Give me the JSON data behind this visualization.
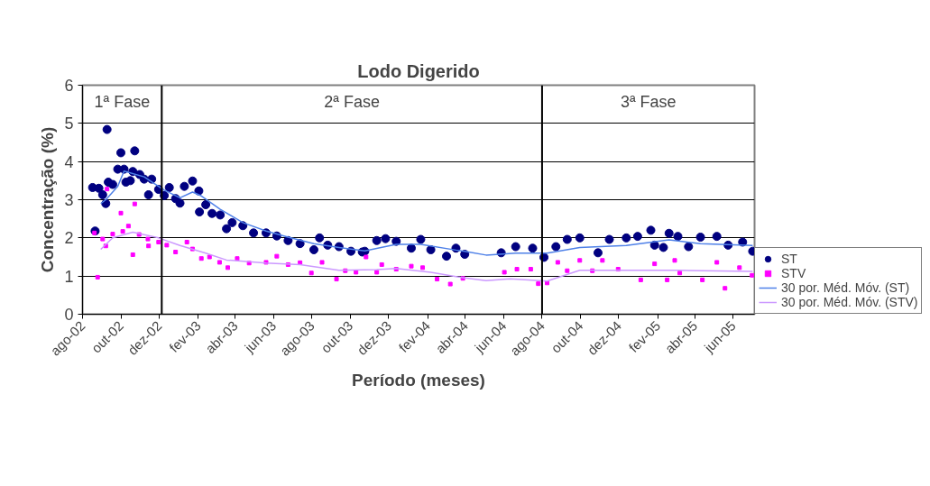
{
  "chart_data": {
    "type": "scatter",
    "title": "Lodo Digerido",
    "xlabel": "Período (meses)",
    "ylabel": "Concentração (%)",
    "xlim": [
      "2002-08-01",
      "2005-07-05"
    ],
    "ylim": [
      0,
      6
    ],
    "yticks": [
      0,
      1,
      2,
      3,
      4,
      5,
      6
    ],
    "xticks": [
      {
        "value": "2002-08-01",
        "label": "ago-02"
      },
      {
        "value": "2002-10-01",
        "label": "out-02"
      },
      {
        "value": "2002-12-01",
        "label": "dez-02"
      },
      {
        "value": "2003-02-01",
        "label": "fev-03"
      },
      {
        "value": "2003-04-01",
        "label": "abr-03"
      },
      {
        "value": "2003-06-01",
        "label": "jun-03"
      },
      {
        "value": "2003-08-01",
        "label": "ago-03"
      },
      {
        "value": "2003-10-01",
        "label": "out-03"
      },
      {
        "value": "2003-12-01",
        "label": "dez-03"
      },
      {
        "value": "2004-02-01",
        "label": "fev-04"
      },
      {
        "value": "2004-04-01",
        "label": "abr-04"
      },
      {
        "value": "2004-06-01",
        "label": "jun-04"
      },
      {
        "value": "2004-08-01",
        "label": "ago-04"
      },
      {
        "value": "2004-10-01",
        "label": "out-04"
      },
      {
        "value": "2004-12-01",
        "label": "dez-04"
      },
      {
        "value": "2005-02-01",
        "label": "fev-05"
      },
      {
        "value": "2005-04-01",
        "label": "abr-05"
      },
      {
        "value": "2005-06-01",
        "label": "jun-05"
      }
    ],
    "grid": "y",
    "legend": "bottom right",
    "ref_lines": [
      {
        "axis": "x",
        "value": "2002-12-05",
        "color": "#000000"
      },
      {
        "axis": "x",
        "value": "2004-08-01",
        "color": "#000000"
      }
    ],
    "annotations": [
      "1ª Fase",
      "2ª Fase",
      "3ª Fase"
    ],
    "series": [
      {
        "name": "ST",
        "marker": "circle",
        "color": "#000080",
        "x": [
          "2002-08-17",
          "2002-08-21",
          "2002-08-27",
          "2002-09-02",
          "2002-09-07",
          "2002-09-09",
          "2002-09-11",
          "2002-09-18",
          "2002-09-26",
          "2002-10-01",
          "2002-10-06",
          "2002-10-09",
          "2002-10-16",
          "2002-10-20",
          "2002-10-23",
          "2002-10-31",
          "2002-11-07",
          "2002-11-14",
          "2002-11-19",
          "2002-11-30",
          "2002-12-09",
          "2002-12-17",
          "2002-12-27",
          "2003-01-03",
          "2003-01-10",
          "2003-01-23",
          "2003-02-02",
          "2003-02-03",
          "2003-02-13",
          "2003-02-23",
          "2003-03-08",
          "2003-03-18",
          "2003-03-27",
          "2003-04-13",
          "2003-04-30",
          "2003-05-20",
          "2003-06-06",
          "2003-06-24",
          "2003-07-13",
          "2003-08-04",
          "2003-08-13",
          "2003-08-26",
          "2003-09-13",
          "2003-10-02",
          "2003-10-20",
          "2003-10-24",
          "2003-11-12",
          "2003-11-26",
          "2003-12-13",
          "2004-01-06",
          "2004-01-21",
          "2004-02-06",
          "2004-03-02",
          "2004-03-17",
          "2004-03-31",
          "2004-05-28",
          "2004-06-20",
          "2004-07-17",
          "2004-08-04",
          "2004-08-23",
          "2004-09-10",
          "2004-09-30",
          "2004-10-29",
          "2004-11-16",
          "2004-12-13",
          "2004-12-31",
          "2005-01-21",
          "2005-01-27",
          "2005-02-10",
          "2005-02-19",
          "2005-03-05",
          "2005-03-22",
          "2005-04-10",
          "2005-05-06",
          "2005-05-24",
          "2005-06-16",
          "2005-07-02"
        ],
        "values": [
          3.32,
          2.18,
          3.3,
          3.13,
          2.9,
          4.84,
          3.46,
          3.4,
          3.8,
          4.23,
          3.8,
          3.46,
          3.5,
          3.74,
          4.28,
          3.66,
          3.54,
          3.13,
          3.54,
          3.27,
          3.11,
          3.32,
          3.03,
          2.91,
          3.35,
          3.49,
          3.23,
          2.68,
          2.87,
          2.64,
          2.6,
          2.24,
          2.4,
          2.32,
          2.13,
          2.13,
          2.05,
          1.93,
          1.85,
          1.69,
          2.0,
          1.81,
          1.77,
          1.65,
          1.63,
          1.65,
          1.93,
          1.98,
          1.91,
          1.73,
          1.96,
          1.69,
          1.52,
          1.73,
          1.57,
          1.61,
          1.77,
          1.73,
          1.49,
          1.77,
          1.96,
          2.0,
          1.61,
          1.96,
          2.0,
          2.04,
          2.2,
          1.81,
          1.75,
          2.12,
          2.04,
          1.77,
          2.02,
          2.04,
          1.81,
          1.89,
          1.65
        ]
      },
      {
        "name": "STV",
        "marker": "square",
        "color": "#ff00ff",
        "x": [
          "2002-08-20",
          "2002-08-25",
          "2002-09-02",
          "2002-09-07",
          "2002-09-09",
          "2002-09-18",
          "2002-10-01",
          "2002-10-04",
          "2002-10-13",
          "2002-10-20",
          "2002-10-23",
          "2002-10-30",
          "2002-11-13",
          "2002-11-14",
          "2002-11-30",
          "2002-12-13",
          "2002-12-27",
          "2003-01-14",
          "2003-01-23",
          "2003-02-06",
          "2003-02-19",
          "2003-03-07",
          "2003-03-20",
          "2003-04-04",
          "2003-04-23",
          "2003-05-20",
          "2003-06-06",
          "2003-06-24",
          "2003-07-13",
          "2003-07-31",
          "2003-08-17",
          "2003-09-09",
          "2003-09-23",
          "2003-10-10",
          "2003-10-26",
          "2003-11-12",
          "2003-11-20",
          "2003-12-13",
          "2004-01-06",
          "2004-01-24",
          "2004-02-16",
          "2004-03-08",
          "2004-03-28",
          "2004-06-02",
          "2004-06-22",
          "2004-07-14",
          "2004-07-26",
          "2004-08-09",
          "2004-08-26",
          "2004-09-10",
          "2004-09-30",
          "2004-10-20",
          "2004-11-05",
          "2004-11-30",
          "2005-01-05",
          "2005-01-27",
          "2005-02-16",
          "2005-02-28",
          "2005-03-08",
          "2005-04-13",
          "2005-05-06",
          "2005-05-19",
          "2005-06-11",
          "2005-07-01"
        ],
        "values": [
          2.13,
          0.97,
          1.97,
          1.79,
          3.28,
          2.1,
          2.65,
          2.17,
          2.31,
          1.56,
          2.89,
          2.09,
          1.97,
          1.79,
          1.89,
          1.81,
          1.63,
          1.89,
          1.71,
          1.46,
          1.5,
          1.36,
          1.22,
          1.46,
          1.34,
          1.36,
          1.52,
          1.3,
          1.35,
          1.08,
          1.36,
          0.92,
          1.14,
          1.1,
          1.5,
          1.1,
          1.3,
          1.18,
          1.26,
          1.22,
          0.92,
          0.79,
          0.94,
          1.1,
          1.18,
          1.18,
          0.8,
          0.82,
          1.36,
          1.14,
          1.41,
          1.14,
          1.41,
          1.18,
          0.9,
          1.32,
          0.9,
          1.41,
          1.08,
          0.9,
          1.36,
          0.68,
          1.22,
          1.02
        ]
      },
      {
        "name": "30 por. Méd. Móv. (ST)",
        "type": "line",
        "line_style": "solid",
        "color": "#4f81e8",
        "x": [
          "2002-08-30",
          "2002-09-07",
          "2002-09-26",
          "2002-10-06",
          "2002-11-07",
          "2002-12-09",
          "2003-01-03",
          "2003-01-23",
          "2003-02-06",
          "2003-03-08",
          "2003-04-13",
          "2003-05-20",
          "2003-06-24",
          "2003-08-04",
          "2003-09-13",
          "2003-10-24",
          "2003-12-13",
          "2004-01-21",
          "2004-03-17",
          "2004-03-31",
          "2004-05-04",
          "2004-06-20",
          "2004-08-09",
          "2004-09-30",
          "2004-12-13",
          "2005-02-19",
          "2005-04-10",
          "2005-07-02"
        ],
        "values": [
          2.9,
          3.0,
          3.35,
          3.75,
          3.6,
          3.25,
          3.05,
          3.2,
          3.1,
          2.75,
          2.4,
          2.18,
          2.02,
          1.85,
          1.75,
          1.66,
          1.83,
          1.83,
          1.68,
          1.65,
          1.55,
          1.6,
          1.6,
          1.75,
          1.8,
          1.95,
          1.85,
          1.8
        ]
      },
      {
        "name": "30 por. Méd. Móv. (STV)",
        "type": "line",
        "line_style": "solid",
        "color": "#cc99ff",
        "x": [
          "2002-08-30",
          "2002-09-18",
          "2002-10-20",
          "2002-11-30",
          "2003-01-03",
          "2003-02-13",
          "2003-03-18",
          "2003-05-20",
          "2003-07-13",
          "2003-09-13",
          "2003-11-12",
          "2003-12-13",
          "2004-02-06",
          "2004-03-31",
          "2004-05-04",
          "2004-06-11",
          "2004-08-09",
          "2004-09-30",
          "2004-12-13",
          "2005-03-05",
          "2005-07-02"
        ],
        "values": [
          1.7,
          2.0,
          2.15,
          2.0,
          1.8,
          1.6,
          1.42,
          1.34,
          1.3,
          1.15,
          1.17,
          1.2,
          1.1,
          0.95,
          0.88,
          0.93,
          0.87,
          1.15,
          1.15,
          1.15,
          1.12
        ]
      }
    ]
  }
}
